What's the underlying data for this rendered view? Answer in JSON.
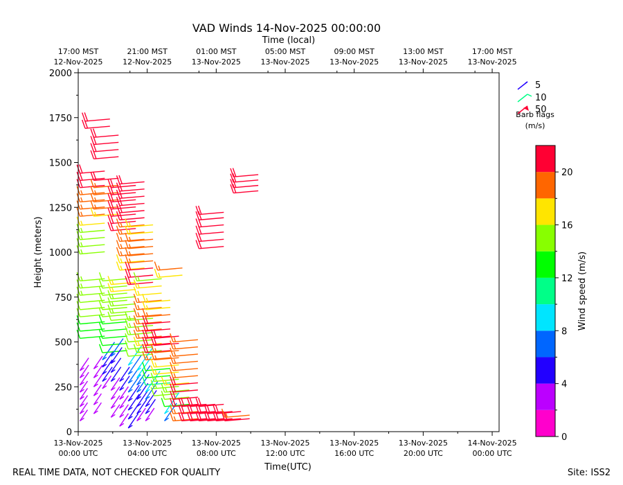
{
  "chart_data": {
    "type": "barbs",
    "title": "VAD Winds 14-Nov-2025 00:00:00",
    "top_axis_label": "Time (local)",
    "xlabel": "Time(UTC)",
    "ylabel": "Height (meters)",
    "ylim": [
      0,
      2000
    ],
    "xlim_hours": [
      0,
      24.4
    ],
    "y_ticks": [
      {
        "value": 0,
        "label": "0"
      },
      {
        "value": 250,
        "label": "250"
      },
      {
        "value": 500,
        "label": "500"
      },
      {
        "value": 750,
        "label": "750"
      },
      {
        "value": 1000,
        "label": "1000"
      },
      {
        "value": 1250,
        "label": "1250"
      },
      {
        "value": 1500,
        "label": "1500"
      },
      {
        "value": 1750,
        "label": "1750"
      },
      {
        "value": 2000,
        "label": "2000"
      }
    ],
    "x_ticks": [
      {
        "hours": 0,
        "line1": "13-Nov-2025",
        "line2": "00:00 UTC"
      },
      {
        "hours": 4,
        "line1": "13-Nov-2025",
        "line2": "04:00 UTC"
      },
      {
        "hours": 8,
        "line1": "13-Nov-2025",
        "line2": "08:00 UTC"
      },
      {
        "hours": 12,
        "line1": "13-Nov-2025",
        "line2": "12:00 UTC"
      },
      {
        "hours": 16,
        "line1": "13-Nov-2025",
        "line2": "16:00 UTC"
      },
      {
        "hours": 20,
        "line1": "13-Nov-2025",
        "line2": "20:00 UTC"
      },
      {
        "hours": 24,
        "line1": "14-Nov-2025",
        "line2": "00:00 UTC"
      }
    ],
    "top_ticks": [
      {
        "hours": -1,
        "line1": "17:00 MST",
        "line2": "12-Nov-2025"
      },
      {
        "hours": 3,
        "line1": "21:00 MST",
        "line2": "12-Nov-2025"
      },
      {
        "hours": 7,
        "line1": "01:00 MST",
        "line2": "13-Nov-2025"
      },
      {
        "hours": 11,
        "line1": "05:00 MST",
        "line2": "13-Nov-2025"
      },
      {
        "hours": 15,
        "line1": "09:00 MST",
        "line2": "13-Nov-2025"
      },
      {
        "hours": 19,
        "line1": "13:00 MST",
        "line2": "13-Nov-2025"
      },
      {
        "hours": 23,
        "line1": "17:00 MST",
        "line2": "13-Nov-2025"
      }
    ],
    "legend": {
      "items": [
        {
          "label": "5",
          "speed": 5
        },
        {
          "label": "10",
          "speed": 10
        },
        {
          "label": "50",
          "speed": 50
        }
      ],
      "caption_line1": "Barb flags",
      "caption_line2": "(m/s)"
    },
    "colorbar": {
      "label": "Wind speed (m/s)",
      "min": 0,
      "max": 22,
      "ticks": [
        0,
        4,
        8,
        12,
        16,
        20
      ],
      "bins": [
        {
          "from": 0,
          "to": 2,
          "color": "#ff00cc"
        },
        {
          "from": 2,
          "to": 4,
          "color": "#bb00ff"
        },
        {
          "from": 4,
          "to": 6,
          "color": "#2200ff"
        },
        {
          "from": 6,
          "to": 8,
          "color": "#0066ff"
        },
        {
          "from": 8,
          "to": 10,
          "color": "#00e5ff"
        },
        {
          "from": 10,
          "to": 12,
          "color": "#00ff88"
        },
        {
          "from": 12,
          "to": 14,
          "color": "#00ff00"
        },
        {
          "from": 14,
          "to": 16,
          "color": "#88ff00"
        },
        {
          "from": 16,
          "to": 18,
          "color": "#ffe500"
        },
        {
          "from": 18,
          "to": 20,
          "color": "#ff6600"
        },
        {
          "from": 20,
          "to": 22,
          "color": "#ff0033"
        }
      ]
    },
    "columns": [
      {
        "t": 0.1,
        "heights": [
          60,
          100,
          140,
          180,
          220,
          260,
          300,
          340
        ],
        "speeds": [
          2,
          2,
          2,
          2,
          2,
          3,
          3,
          3
        ]
      },
      {
        "t": 0.1,
        "heights": [
          520,
          560,
          600,
          640,
          680,
          720,
          760,
          800,
          840
        ],
        "speeds": [
          13,
          13,
          13,
          14,
          14,
          14,
          15,
          15,
          15
        ]
      },
      {
        "t": 0.1,
        "heights": [
          990,
          1030,
          1070,
          1110,
          1150
        ],
        "speeds": [
          15,
          15,
          15,
          15,
          17
        ]
      },
      {
        "t": 0.1,
        "heights": [
          1200,
          1240,
          1280,
          1320,
          1360,
          1400,
          1440
        ],
        "speeds": [
          18,
          18,
          19,
          19,
          20,
          20,
          21
        ]
      },
      {
        "t": 0.4,
        "heights": [
          1690,
          1730
        ],
        "speeds": [
          21,
          21
        ]
      },
      {
        "t": 0.9,
        "heights": [
          100,
          150,
          200,
          250,
          300,
          350
        ],
        "speeds": [
          2,
          2,
          2,
          3,
          3,
          3
        ]
      },
      {
        "t": 0.9,
        "heights": [
          1200,
          1240,
          1280,
          1320,
          1360,
          1400
        ],
        "speeds": [
          17,
          18,
          18,
          19,
          19,
          20
        ]
      },
      {
        "t": 0.9,
        "heights": [
          1520,
          1560,
          1600,
          1640
        ],
        "speeds": [
          21,
          21,
          21,
          21
        ]
      },
      {
        "t": 1.4,
        "heights": [
          240,
          280,
          320,
          360,
          400
        ],
        "speeds": [
          3,
          4,
          4,
          5,
          6
        ]
      },
      {
        "t": 1.4,
        "heights": [
          440,
          480,
          520,
          560,
          600,
          640,
          680,
          720,
          760,
          800,
          840
        ],
        "speeds": [
          13,
          13,
          13,
          13,
          13,
          14,
          14,
          14,
          14,
          14,
          14
        ]
      },
      {
        "t": 1.9,
        "heights": [
          80,
          130,
          180,
          230,
          280,
          330,
          380,
          420
        ],
        "speeds": [
          3,
          3,
          3,
          3,
          4,
          4,
          5,
          6
        ]
      },
      {
        "t": 1.9,
        "heights": [
          620,
          660,
          700,
          740,
          780,
          820
        ],
        "speeds": [
          14,
          15,
          15,
          15,
          16,
          16
        ]
      },
      {
        "t": 1.9,
        "heights": [
          1120,
          1160,
          1200,
          1240,
          1280,
          1320,
          1360
        ],
        "speeds": [
          20,
          20,
          21,
          21,
          21,
          21,
          21
        ]
      },
      {
        "t": 2.4,
        "heights": [
          30,
          80,
          130,
          180,
          230,
          280
        ],
        "speeds": [
          3,
          3,
          3,
          3,
          4,
          4
        ]
      },
      {
        "t": 2.4,
        "heights": [
          900,
          940,
          980,
          1020,
          1060,
          1100,
          1140,
          1180,
          1220,
          1260,
          1300,
          1340,
          1380
        ],
        "speeds": [
          16,
          17,
          18,
          18,
          18,
          19,
          19,
          21,
          21,
          21,
          21,
          21,
          21
        ]
      },
      {
        "t": 2.9,
        "heights": [
          20,
          70,
          120,
          170,
          220,
          270,
          320,
          370
        ],
        "speeds": [
          4,
          4,
          5,
          5,
          6,
          6,
          7,
          8
        ]
      },
      {
        "t": 2.9,
        "heights": [
          420,
          460,
          500,
          540,
          580,
          620
        ],
        "speeds": [
          14,
          14,
          14,
          15,
          15,
          15
        ]
      },
      {
        "t": 2.9,
        "heights": [
          820,
          860,
          900,
          940,
          980,
          1020,
          1060,
          1100,
          1140
        ],
        "speeds": [
          20,
          20,
          20,
          19,
          19,
          19,
          18,
          17,
          16
        ]
      },
      {
        "t": 3.4,
        "heights": [
          60,
          100,
          140,
          180,
          220,
          260,
          300,
          340
        ],
        "speeds": [
          3,
          4,
          5,
          5,
          6,
          7,
          8,
          9
        ]
      },
      {
        "t": 3.4,
        "heights": [
          440,
          480,
          520,
          560,
          600,
          640,
          680,
          720,
          760,
          800,
          840
        ],
        "speeds": [
          15,
          16,
          18,
          19,
          19,
          19,
          19,
          18,
          17,
          16,
          15
        ]
      },
      {
        "t": 3.9,
        "heights": [
          60,
          100,
          140,
          180,
          220,
          260,
          300,
          340
        ],
        "speeds": [
          3,
          4,
          5,
          6,
          8,
          10,
          12,
          13
        ]
      },
      {
        "t": 3.9,
        "heights": [
          400,
          440,
          480,
          520,
          560,
          600,
          640,
          680,
          720
        ],
        "speeds": [
          19,
          20,
          20,
          21,
          21,
          21,
          19,
          17,
          16
        ]
      },
      {
        "t": 4.4,
        "heights": [
          200,
          240,
          280,
          320,
          360,
          400,
          440,
          480,
          520
        ],
        "speeds": [
          14,
          15,
          15,
          16,
          17,
          18,
          19,
          20,
          20
        ]
      },
      {
        "t": 4.6,
        "heights": [
          860,
          900
        ],
        "speeds": [
          17,
          19
        ]
      },
      {
        "t": 5.0,
        "heights": [
          60,
          100,
          140,
          180,
          220,
          260
        ],
        "speeds": [
          6,
          8,
          13,
          14,
          15,
          17
        ]
      },
      {
        "t": 5.5,
        "heights": [
          60,
          100,
          140,
          180,
          220,
          260,
          300,
          340,
          380,
          420,
          460,
          500
        ],
        "speeds": [
          19,
          19,
          20,
          20,
          20,
          20,
          19,
          19,
          19,
          19,
          19,
          19
        ]
      },
      {
        "t": 6.0,
        "heights": [
          60,
          100,
          140
        ],
        "speeds": [
          20,
          20,
          20
        ]
      },
      {
        "t": 6.5,
        "heights": [
          60,
          100,
          140
        ],
        "speeds": [
          21,
          21,
          21
        ]
      },
      {
        "t": 7.0,
        "heights": [
          60,
          100,
          140
        ],
        "speeds": [
          21,
          21,
          21
        ]
      },
      {
        "t": 7.5,
        "heights": [
          60,
          100
        ],
        "speeds": [
          20,
          20
        ]
      },
      {
        "t": 8.0,
        "heights": [
          60,
          100
        ],
        "speeds": [
          20,
          20
        ]
      },
      {
        "t": 8.5,
        "heights": [
          60,
          80
        ],
        "speeds": [
          20,
          19
        ]
      },
      {
        "t": 7.0,
        "heights": [
          1020,
          1060,
          1100,
          1140,
          1180,
          1210
        ],
        "speeds": [
          21,
          21,
          21,
          21,
          21,
          21
        ]
      },
      {
        "t": 9.0,
        "heights": [
          1330,
          1360,
          1390,
          1420
        ],
        "speeds": [
          21,
          21,
          21,
          21
        ]
      }
    ],
    "footer_left": "REAL TIME DATA, NOT CHECKED FOR QUALITY",
    "footer_right": "Site: ISS2"
  }
}
